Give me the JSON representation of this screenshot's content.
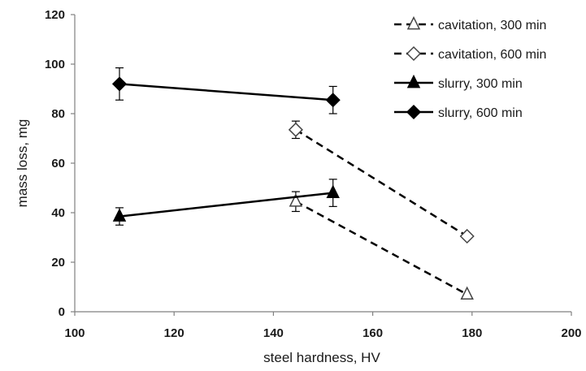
{
  "chart_data": {
    "type": "line",
    "xlabel": "steel hardness, HV",
    "ylabel": "mass loss, mg",
    "xlim": [
      100,
      200
    ],
    "ylim": [
      0,
      120
    ],
    "x_ticks": [
      100,
      120,
      140,
      160,
      180,
      200
    ],
    "y_ticks": [
      0,
      20,
      40,
      60,
      80,
      100,
      120
    ],
    "grid": false,
    "legend_position": "top-right",
    "series": [
      {
        "name": "cavitation, 300 min",
        "marker": "triangle-open",
        "line": "dashed",
        "x": [
          144.5,
          179
        ],
        "y": [
          44.5,
          7
        ],
        "error": [
          4,
          0
        ]
      },
      {
        "name": "cavitation, 600 min",
        "marker": "diamond-open",
        "line": "dashed",
        "x": [
          144.5,
          179
        ],
        "y": [
          73.5,
          30.5
        ],
        "error": [
          3.5,
          0
        ]
      },
      {
        "name": "slurry, 300 min",
        "marker": "triangle-filled",
        "line": "solid",
        "x": [
          109,
          152
        ],
        "y": [
          38.5,
          48
        ],
        "error": [
          3.5,
          5.5
        ]
      },
      {
        "name": "slurry, 600 min",
        "marker": "diamond-filled",
        "line": "solid",
        "x": [
          109,
          152
        ],
        "y": [
          92,
          85.5
        ],
        "error": [
          6.5,
          5.5
        ]
      }
    ]
  },
  "colors": {
    "ink": "#000000",
    "open_marker_stroke": "#444444",
    "open_marker_fill": "#ffffff"
  }
}
